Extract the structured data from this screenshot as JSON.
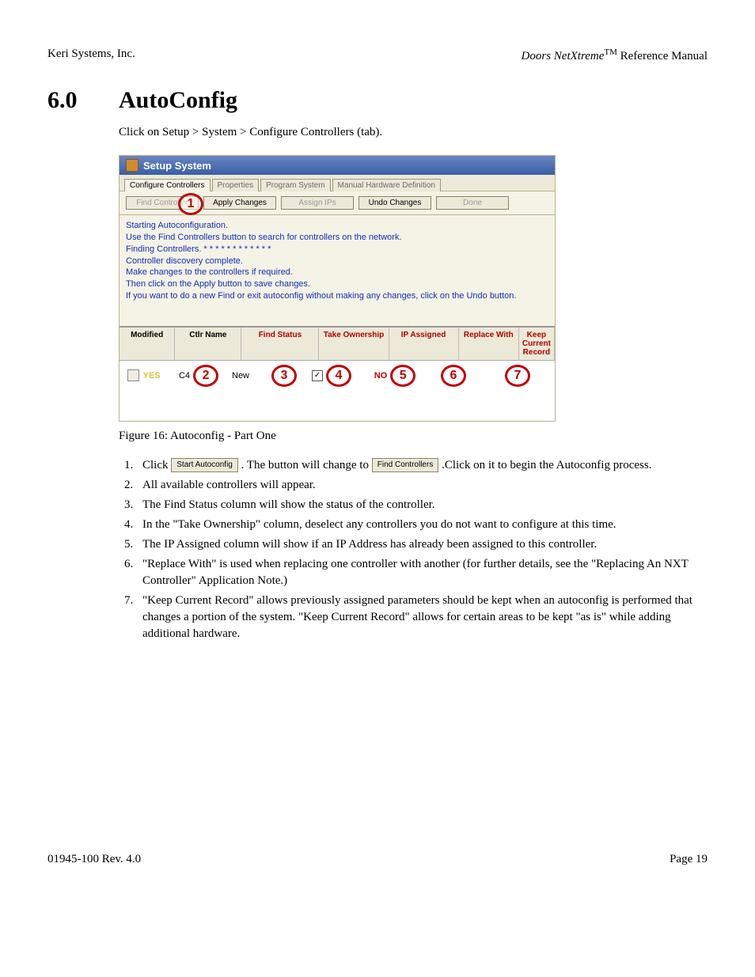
{
  "header": {
    "company": "Keri Systems, Inc.",
    "manual_title": "Doors NetXtreme",
    "manual_suffix": " Reference Manual"
  },
  "section": {
    "number": "6.0",
    "title": "AutoConfig",
    "intro": "Click on Setup > System > Configure Controllers (tab)."
  },
  "figure": {
    "window_title": "Setup System",
    "tabs": [
      "Configure Controllers",
      "Properties",
      "Program System",
      "Manual Hardware Definition"
    ],
    "active_tab": 0,
    "toolbar": {
      "find": "Find Controller",
      "apply": "Apply Changes",
      "assign": "Assign IPs",
      "undo": "Undo Changes",
      "done": "Done"
    },
    "messages": [
      "Starting Autoconfiguration.",
      "Use the Find Controllers button to search for controllers on the network.",
      "Finding Controllers.  * * * * * * * * * * * *",
      "Controller discovery complete.",
      "Make changes to the controllers if required.",
      "Then click on the Apply button to save changes.",
      "If you want to do a new Find or exit autoconfig without making any changes, click on the Undo button."
    ],
    "columns": {
      "modified": "Modified",
      "ctlr_name": "Ctlr Name",
      "find_status": "Find Status",
      "take_ownership": "Take Ownership",
      "ip_assigned": "IP Assigned",
      "replace_with": "Replace With",
      "keep_current_record": "Keep Current Record"
    },
    "row": {
      "modified": "YES",
      "ctlr_name": "C4",
      "find_status": "New",
      "take_ownership_checked": true,
      "ip_assigned": "NO",
      "replace_with": "",
      "keep_current_record": ""
    },
    "callouts": [
      "1",
      "2",
      "3",
      "4",
      "5",
      "6",
      "7"
    ],
    "caption": "Figure 16: Autoconfig - Part One"
  },
  "inline_buttons": {
    "start_autoconfig": "Start Autoconfig",
    "find_controllers": "Find Controllers"
  },
  "steps": {
    "s1a": "Click ",
    "s1b": ". The button will change to ",
    "s1c": ".Click on it to begin the Autoconfig process.",
    "s2": "All available controllers will appear.",
    "s3": "The Find Status column will show the status of the controller.",
    "s4": "In the \"Take Ownership\" column, deselect any controllers you do not want to configure at this time.",
    "s5": "The IP Assigned column will show if an IP Address has already been assigned to this controller.",
    "s6": "\"Replace With\" is used when replacing one controller with another (for further details, see the \"Replacing An NXT Controller\" Application Note.)",
    "s7": "\"Keep Current Record\" allows previously assigned parameters should be kept when an autoconfig is performed that changes a portion of the system. \"Keep Current Record\" allows for certain areas to be kept \"as is\" while adding additional hardware."
  },
  "footer": {
    "doc_id": "01945-100  Rev. 4.0",
    "page": "Page 19"
  },
  "colors": {
    "titlebar_grad_top": "#6a86c2",
    "titlebar_grad_bottom": "#3a5ea8",
    "panel_bg": "#ede7d5",
    "tab_bg": "#ece9d8",
    "msg_text": "#1030b8",
    "red": "#c00000",
    "th_red": "#b00000"
  }
}
